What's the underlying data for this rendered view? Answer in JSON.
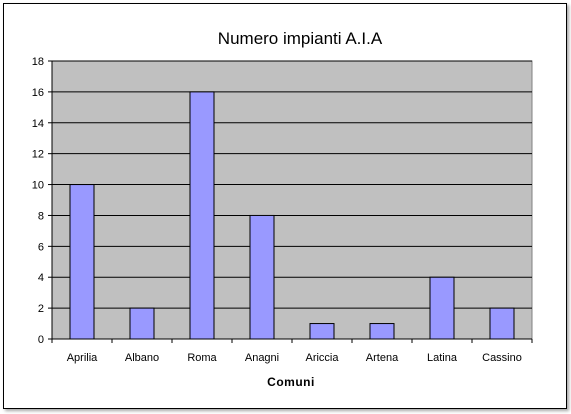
{
  "chart_data": {
    "type": "bar",
    "title": "Numero impianti A.I.A",
    "xlabel": "Comuni",
    "ylabel": "",
    "categories": [
      "Aprilia",
      "Albano",
      "Roma",
      "Anagni",
      "Ariccia",
      "Artena",
      "Latina",
      "Cassino"
    ],
    "values": [
      10,
      2,
      16,
      8,
      1,
      1,
      4,
      2
    ],
    "ylim": [
      0,
      18
    ],
    "yticks": [
      "0",
      "2",
      "4",
      "6",
      "8",
      "10",
      "12",
      "14",
      "16",
      "18"
    ],
    "grid": true,
    "legend": "none",
    "colors": {
      "plot_background": "#c0c0c0",
      "bar_fill": "#9999ff",
      "bar_stroke": "#000000",
      "gridline": "#000000"
    }
  }
}
